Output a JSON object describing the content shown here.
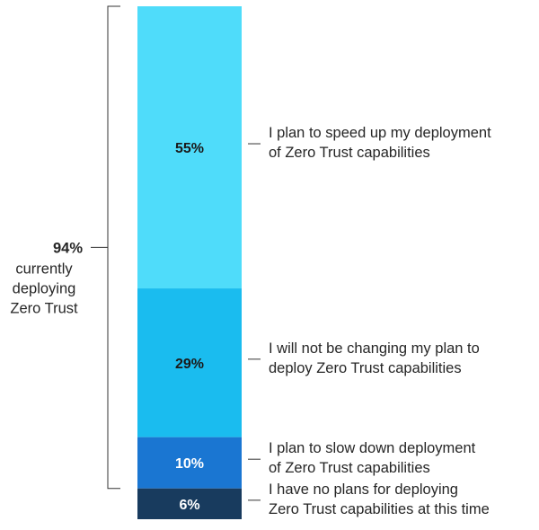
{
  "chart_data": {
    "type": "bar",
    "stacked": true,
    "orientation": "vertical",
    "segments": [
      {
        "value": 55,
        "label": "55%",
        "color": "#4fdcfa",
        "label_color": "#1a1a1a",
        "category": [
          "I plan to speed up my deployment",
          "of Zero Trust capabilities"
        ]
      },
      {
        "value": 29,
        "label": "29%",
        "color": "#1abcef",
        "label_color": "#1a1a1a",
        "category": [
          "I will not be changing my plan to",
          "deploy Zero Trust capabilities"
        ]
      },
      {
        "value": 10,
        "label": "10%",
        "color": "#1a76d2",
        "label_color": "#ffffff",
        "category": [
          "I plan to slow down deployment",
          "of Zero Trust capabilities"
        ]
      },
      {
        "value": 6,
        "label": "6%",
        "color": "#183b5e",
        "label_color": "#ffffff",
        "category": [
          "I have no plans for deploying",
          "Zero Trust capabilities at this time"
        ]
      }
    ],
    "bracket": {
      "value_label": "94%",
      "text_lines": [
        "currently",
        "deploying",
        "Zero Trust"
      ],
      "covers_segments": 3
    },
    "legend": "none",
    "grid": false
  }
}
